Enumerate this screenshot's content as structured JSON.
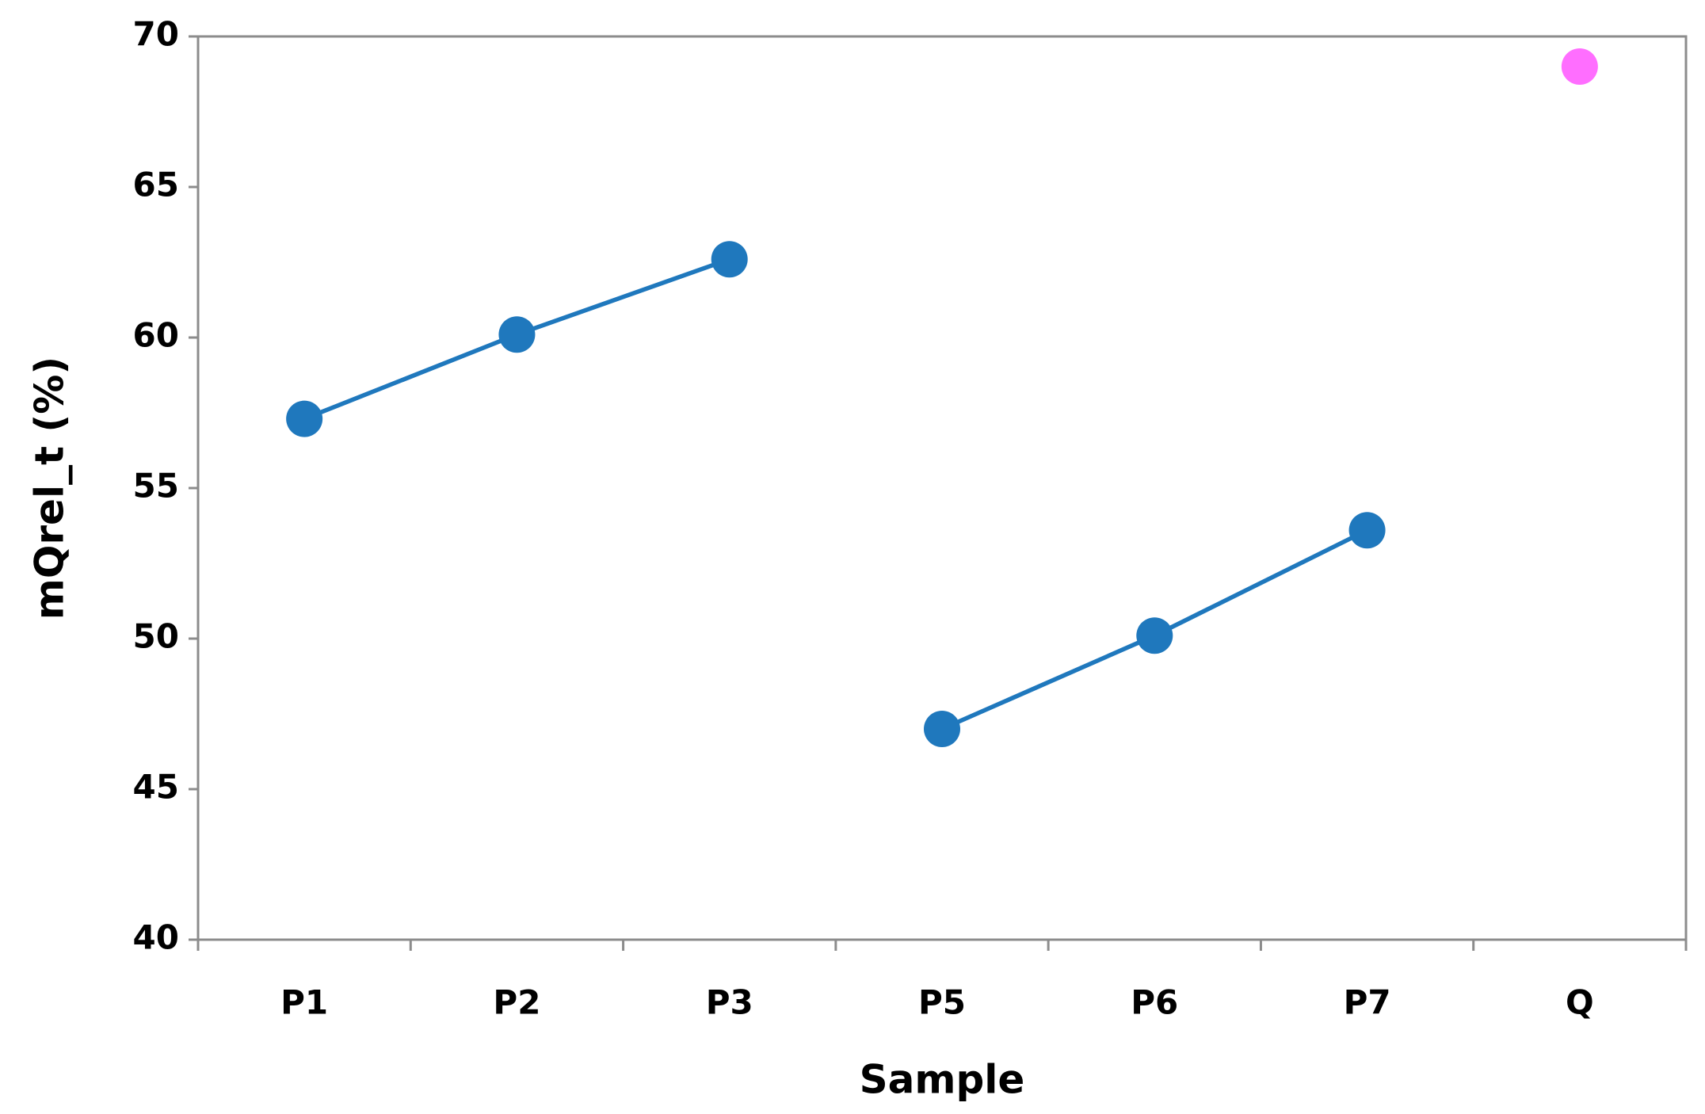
{
  "chart_data": {
    "type": "line",
    "x_label": "Sample",
    "y_label": "mQrel_t (%)",
    "categories": [
      "P1",
      "P2",
      "P3",
      "P5",
      "P6",
      "P7",
      "Q"
    ],
    "series": [
      {
        "color": "#1f78bd",
        "line": true,
        "values": [
          57.3,
          60.1,
          62.6,
          null,
          null,
          null,
          null
        ]
      },
      {
        "color": "#1f78bd",
        "line": true,
        "values": [
          null,
          null,
          null,
          47.0,
          50.1,
          53.6,
          null
        ]
      },
      {
        "color": "#ff6eff",
        "line": false,
        "values": [
          null,
          null,
          null,
          null,
          null,
          null,
          69.0
        ]
      }
    ],
    "ylim": [
      40,
      70
    ],
    "yticks": [
      40,
      45,
      50,
      55,
      60,
      65,
      70
    ],
    "grid": false
  }
}
